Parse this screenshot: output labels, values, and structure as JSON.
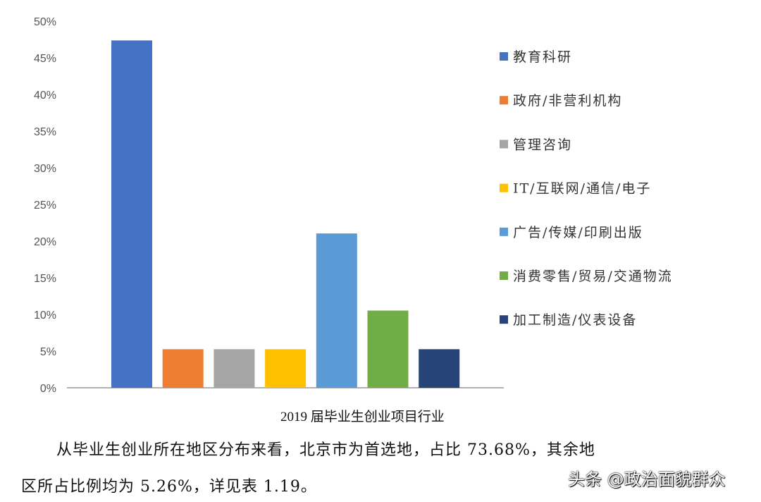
{
  "chart_data": {
    "type": "bar",
    "title": "2019 届毕业生创业项目行业",
    "categories": [
      "教育科研",
      "政府/非营利机构",
      "管理咨询",
      "IT/互联网/通信/电子",
      "广告/传媒/印刷出版",
      "消费零售/贸易/交通物流",
      "加工制造/仪表设备"
    ],
    "values": [
      47.37,
      5.26,
      5.26,
      5.26,
      21.05,
      10.53,
      5.26
    ],
    "colors": [
      "#4472C4",
      "#ED7D31",
      "#A5A5A5",
      "#FFC000",
      "#5B9BD5",
      "#70AD47",
      "#264478"
    ],
    "yticks": [
      "0%",
      "5%",
      "10%",
      "15%",
      "20%",
      "25%",
      "30%",
      "35%",
      "40%",
      "45%",
      "50%"
    ],
    "ylim": [
      0,
      50
    ],
    "yunit": "%",
    "grid": false,
    "legend": "right"
  },
  "text": {
    "para1": "从毕业生创业所在地区分布来看，北京市为首选地，占比 73.68%，其余地",
    "para2": "区所占比例均为 5.26%，详见表 1.19。",
    "watermark": "头条 @政治面貌群众"
  }
}
